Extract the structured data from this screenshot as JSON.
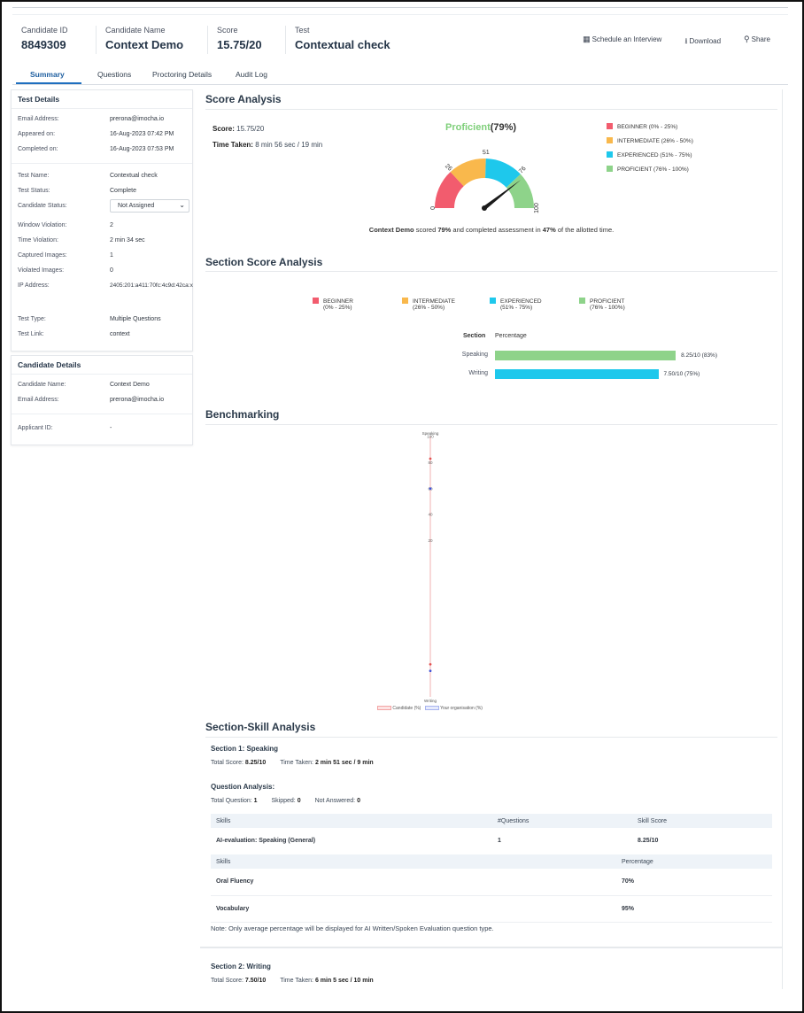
{
  "header": {
    "candidate_id_label": "Candidate ID",
    "candidate_id": "8849309",
    "candidate_name_label": "Candidate Name",
    "candidate_name": "Context Demo",
    "score_label": "Score",
    "score": "15.75/20",
    "test_label": "Test",
    "test": "Contextual check",
    "schedule_label": "Schedule an Interview",
    "download_label": "Download",
    "share_label": "Share"
  },
  "tabs": [
    "Summary",
    "Questions",
    "Proctoring Details",
    "Audit Log"
  ],
  "test_details": {
    "title": "Test Details",
    "email_label": "Email Address:",
    "email": "prerona@imocha.io",
    "appeared_label": "Appeared on:",
    "appeared": "16-Aug-2023 07:42 PM",
    "completed_label": "Completed on:",
    "completed": "16-Aug-2023 07:53 PM",
    "test_name_label": "Test Name:",
    "test_name": "Contextual check",
    "test_status_label": "Test Status:",
    "test_status": "Complete",
    "candidate_status_label": "Candidate Status:",
    "candidate_status": "Not Assigned",
    "window_violation_label": "Window Violation:",
    "window_violation": "2",
    "time_violation_label": "Time Violation:",
    "time_violation": "2 min 34 sec",
    "captured_label": "Captured Images:",
    "captured": "1",
    "violated_label": "Violated Images:",
    "violated": "0",
    "ip_label": "IP Address:",
    "ip": "2405:201:a411:70fc:4c9d:42ca:x",
    "test_type_label": "Test Type:",
    "test_type": "Multiple Questions",
    "test_link_label": "Test Link:",
    "test_link": "context"
  },
  "candidate_details": {
    "title": "Candidate Details",
    "name_label": "Candidate Name:",
    "name": "Context Demo",
    "email_label": "Email Address:",
    "email": "prerona@imocha.io",
    "applicant_label": "Applicant ID:",
    "applicant": "-"
  },
  "score_analysis": {
    "title": "Score Analysis",
    "score_label": "Score:",
    "score": "15.75/20",
    "time_label": "Time Taken:",
    "time": "8 min 56 sec / 19 min",
    "level": "Proficient",
    "level_pct": "(79%)",
    "gauge_ticks": [
      "0",
      "26",
      "51",
      "76",
      "100"
    ],
    "gauge_value": 79,
    "summary_name": "Context Demo",
    "summary_mid": " scored ",
    "summary_pct": "79%",
    "summary_mid2": " and completed assessment in ",
    "summary_time": "47%",
    "summary_end": " of the allotted time."
  },
  "levels": [
    {
      "name": "BEGINNER",
      "range": "(0% - 25%)",
      "color": "#f25c6e"
    },
    {
      "name": "INTERMEDIATE",
      "range": "(26% - 50%)",
      "color": "#f9b84c"
    },
    {
      "name": "EXPERIENCED",
      "range": "(51% - 75%)",
      "color": "#1ec8ec"
    },
    {
      "name": "PROFICIENT",
      "range": "(76% - 100%)",
      "color": "#8ed38a"
    }
  ],
  "section_score": {
    "title": "Section Score Analysis",
    "col_section": "Section",
    "col_percentage": "Percentage",
    "rows": [
      {
        "name": "Speaking",
        "value_text": "8.25/10 (83%)",
        "pct": 83,
        "color": "#8ed38a"
      },
      {
        "name": "Writing",
        "value_text": "7.50/10 (75%)",
        "pct": 75,
        "color": "#1ec8ec"
      }
    ]
  },
  "benchmarking": {
    "title": "Benchmarking",
    "top_label": "Speaking",
    "bottom_label": "Writing",
    "ticks": [
      "100",
      "80",
      "60",
      "40",
      "20"
    ],
    "legend_candidate": "Candidate (%)",
    "legend_org": "Your organisation (%)"
  },
  "chart_data": {
    "type": "line",
    "categories": [
      "Speaking",
      "Writing"
    ],
    "series": [
      {
        "name": "Candidate (%)",
        "values": [
          83,
          75
        ]
      },
      {
        "name": "Your organisation (%)",
        "values": [
          60,
          80
        ]
      }
    ],
    "ylim": [
      0,
      100
    ]
  },
  "skill_analysis": {
    "title": "Section-Skill Analysis",
    "section1": "Section 1: Speaking",
    "s1_total_label": "Total Score:",
    "s1_total": "8.25/10",
    "s1_time_label": "Time Taken:",
    "s1_time": "2 min 51 sec / 9 min",
    "qa_title": "Question Analysis:",
    "qa_total_label": "Total Question:",
    "qa_total": "1",
    "qa_skipped_label": "Skipped:",
    "qa_skipped": "0",
    "qa_na_label": "Not Answered:",
    "qa_na": "0",
    "t1_headers": [
      "Skills",
      "#Questions",
      "Skill Score"
    ],
    "t1_row": [
      "AI-evaluation: Speaking (General)",
      "1",
      "8.25/10"
    ],
    "t2_headers": [
      "Skills",
      "Percentage"
    ],
    "t2_rows": [
      [
        "Oral Fluency",
        "70%"
      ],
      [
        "Vocabulary",
        "95%"
      ]
    ],
    "note": "Note: Only average percentage will be displayed for AI Written/Spoken Evaluation question type.",
    "section2": "Section 2: Writing",
    "s2_total_label": "Total Score:",
    "s2_total": "7.50/10",
    "s2_time_label": "Time Taken:",
    "s2_time": "6 min 5 sec / 10 min"
  }
}
